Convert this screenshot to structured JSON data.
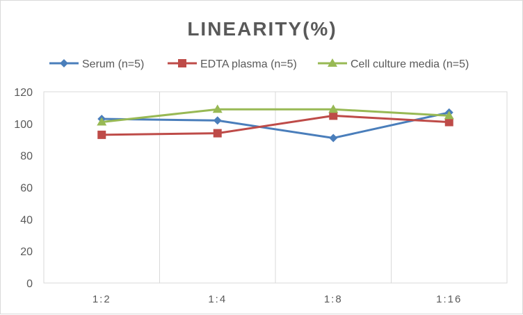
{
  "chart_data": {
    "type": "line",
    "title": "LINEARITY(%)",
    "xlabel": "",
    "ylabel": "",
    "categories": [
      "1:2",
      "1:4",
      "1:8",
      "1:16"
    ],
    "ylim": [
      0,
      120
    ],
    "yticks": [
      0,
      20,
      40,
      60,
      80,
      100,
      120
    ],
    "grid": "vertical",
    "legend_position": "top",
    "series": [
      {
        "name": "Serum (n=5)",
        "values": [
          103,
          102,
          91,
          107
        ],
        "color": "#4a7ebb",
        "marker": "diamond"
      },
      {
        "name": "EDTA plasma (n=5)",
        "values": [
          93,
          94,
          105,
          101
        ],
        "color": "#be4b48",
        "marker": "square"
      },
      {
        "name": "Cell culture media (n=5)",
        "values": [
          101,
          109,
          109,
          105
        ],
        "color": "#98b954",
        "marker": "triangle"
      }
    ]
  }
}
